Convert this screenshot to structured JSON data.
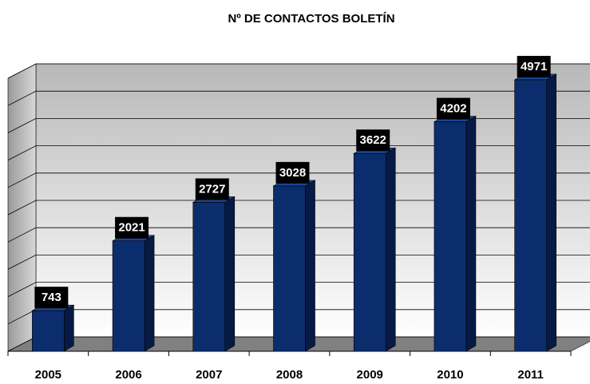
{
  "chart_data": {
    "type": "bar3d",
    "title": "Nº DE CONTACTOS BOLETÍN",
    "categories": [
      "2005",
      "2006",
      "2007",
      "2008",
      "2009",
      "2010",
      "2011"
    ],
    "values": [
      743,
      2021,
      2727,
      3028,
      3622,
      4202,
      4971
    ],
    "color": "#0b2d6e",
    "ylim": [
      0,
      5000
    ],
    "yticks": [
      0,
      500,
      1000,
      1500,
      2000,
      2500,
      3000,
      3500,
      4000,
      4500,
      5000
    ],
    "grid": true
  }
}
